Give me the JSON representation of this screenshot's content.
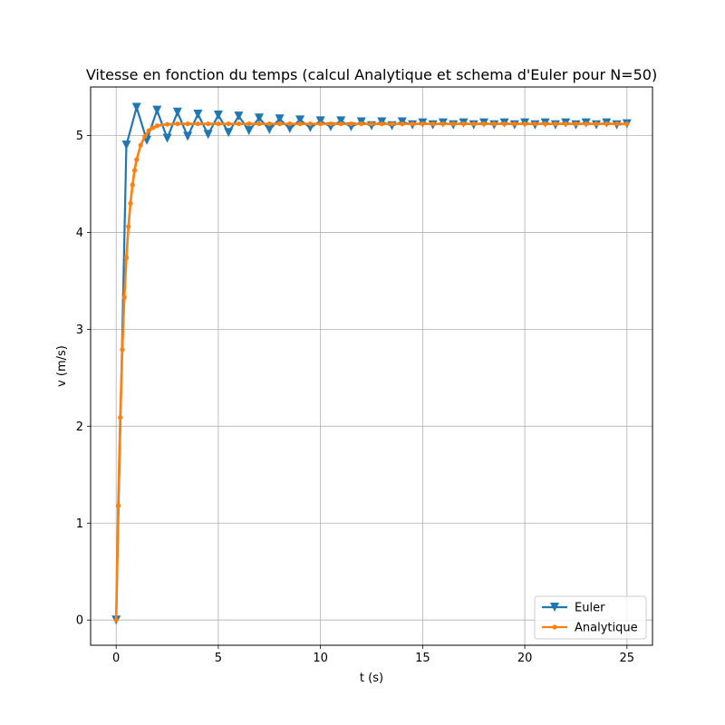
{
  "chart_data": {
    "type": "line",
    "title": "Vitesse en fonction du temps (calcul Analytique et schema d'Euler pour N=50)",
    "xlabel": "t (s)",
    "ylabel": "v (m/s)",
    "xlim": [
      -1.25,
      26.25
    ],
    "ylim": [
      -0.26,
      5.5
    ],
    "xticks": [
      0,
      5,
      10,
      15,
      20,
      25
    ],
    "xtick_labels": [
      "0",
      "5",
      "10",
      "15",
      "20",
      "25"
    ],
    "yticks": [
      0,
      1,
      2,
      3,
      4,
      5
    ],
    "ytick_labels": [
      "0",
      "1",
      "2",
      "3",
      "4",
      "5"
    ],
    "grid": true,
    "legend_position": "bottom-right",
    "steady_state": 5.12,
    "series": [
      {
        "name": "Euler",
        "color": "#1f77b4",
        "marker": "triangle-down",
        "x": [
          0,
          0.5,
          1,
          1.5,
          2,
          2.5,
          3,
          3.5,
          4,
          4.5,
          5,
          5.5,
          6,
          6.5,
          7,
          7.5,
          8,
          8.5,
          9,
          9.5,
          10,
          10.5,
          11,
          11.5,
          12,
          12.5,
          13,
          13.5,
          14,
          14.5,
          15,
          15.5,
          16,
          16.5,
          17,
          17.5,
          18,
          18.5,
          19,
          19.5,
          20,
          20.5,
          21,
          21.5,
          22,
          22.5,
          23,
          23.5,
          24,
          24.5,
          25
        ],
        "y": [
          0,
          4.9,
          5.29,
          4.95,
          5.26,
          4.97,
          5.24,
          4.99,
          5.22,
          5.01,
          5.21,
          5.03,
          5.2,
          5.05,
          5.18,
          5.06,
          5.17,
          5.07,
          5.16,
          5.08,
          5.15,
          5.09,
          5.15,
          5.09,
          5.14,
          5.1,
          5.14,
          5.1,
          5.14,
          5.11,
          5.13,
          5.11,
          5.13,
          5.11,
          5.13,
          5.11,
          5.13,
          5.11,
          5.13,
          5.11,
          5.13,
          5.11,
          5.13,
          5.11,
          5.13,
          5.11,
          5.13,
          5.11,
          5.13,
          5.11,
          5.12
        ]
      },
      {
        "name": "Analytique",
        "color": "#ff7f0e",
        "marker": "dot",
        "x": [
          0,
          0.1,
          0.2,
          0.3,
          0.4,
          0.5,
          0.6,
          0.7,
          0.8,
          0.9,
          1.0,
          1.2,
          1.4,
          1.6,
          1.8,
          2.0,
          2.5,
          3,
          3.5,
          4,
          4.5,
          5,
          5.5,
          6,
          6.5,
          7,
          7.5,
          8,
          8.5,
          9,
          9.5,
          10,
          10.5,
          11,
          11.5,
          12,
          12.5,
          13,
          13.5,
          14,
          14.5,
          15,
          15.5,
          16,
          16.5,
          17,
          17.5,
          18,
          18.5,
          19,
          19.5,
          20,
          20.5,
          21,
          21.5,
          22,
          22.5,
          23,
          23.5,
          24,
          24.5,
          25
        ],
        "y": [
          0,
          1.18,
          2.09,
          2.79,
          3.33,
          3.74,
          4.06,
          4.3,
          4.49,
          4.64,
          4.75,
          4.9,
          4.99,
          5.05,
          5.08,
          5.1,
          5.115,
          5.12,
          5.12,
          5.12,
          5.12,
          5.12,
          5.12,
          5.12,
          5.12,
          5.12,
          5.12,
          5.12,
          5.12,
          5.12,
          5.12,
          5.12,
          5.12,
          5.12,
          5.12,
          5.12,
          5.12,
          5.12,
          5.12,
          5.12,
          5.12,
          5.12,
          5.12,
          5.12,
          5.12,
          5.12,
          5.12,
          5.12,
          5.12,
          5.12,
          5.12,
          5.12,
          5.12,
          5.12,
          5.12,
          5.12,
          5.12,
          5.12,
          5.12,
          5.12,
          5.12,
          5.12
        ]
      }
    ]
  }
}
